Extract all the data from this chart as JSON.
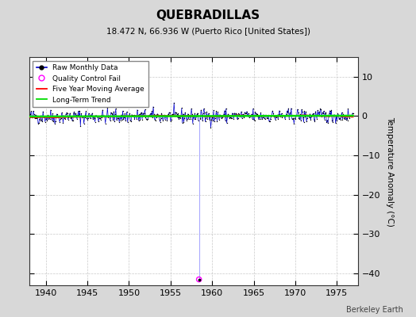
{
  "title": "QUEBRADILLAS",
  "subtitle": "18.472 N, 66.936 W (Puerto Rico [United States])",
  "ylabel": "Temperature Anomaly (°C)",
  "watermark": "Berkeley Earth",
  "xlim": [
    1938.0,
    1977.5
  ],
  "ylim": [
    -43,
    15
  ],
  "yticks": [
    -40,
    -30,
    -20,
    -10,
    0,
    10
  ],
  "xticks": [
    1940,
    1945,
    1950,
    1955,
    1960,
    1965,
    1970,
    1975
  ],
  "bg_color": "#d8d8d8",
  "plot_bg_color": "#ffffff",
  "raw_line_color": "#0000cc",
  "raw_dot_color": "#000000",
  "qc_fail_x": 1958.417,
  "qc_fail_y": -41.5,
  "qc_line_color": "#aaaaff",
  "qc_marker_color": "#ff00ff",
  "moving_avg_color": "#ff0000",
  "trend_color": "#00dd00",
  "grid_color": "#bbbbbb",
  "seed": 42,
  "years_start": 1938,
  "years_end": 1977,
  "anomaly_std": 1.0
}
